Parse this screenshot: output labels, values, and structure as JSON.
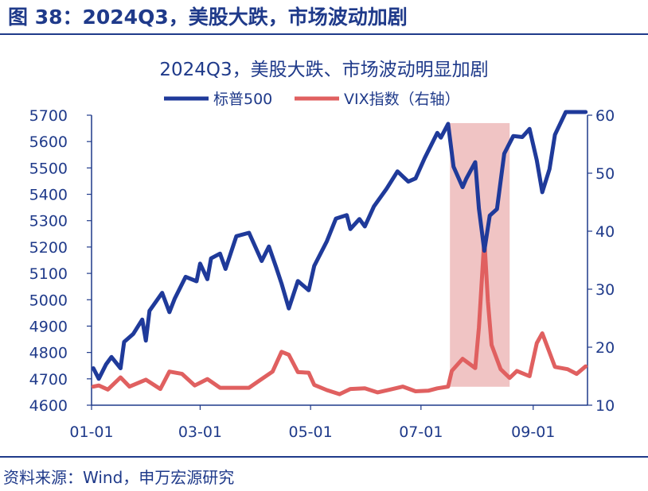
{
  "figure": {
    "title": "图 38：2024Q3，美股大跌，市场波动加剧",
    "source": "资料来源：Wind，申万宏源研究"
  },
  "colors": {
    "spx": "#1f3a9a",
    "vix": "#e06060",
    "highlight": "#f0c4c4",
    "axis": "#1f3a8a"
  },
  "chart_data": {
    "type": "line",
    "title": "2024Q3，美股大跌、市场波动明显加剧",
    "legend_position": "top",
    "grid": false,
    "x_range": [
      "2024-01-01",
      "2024-10-01"
    ],
    "x_ticks": [
      "01-01",
      "03-01",
      "05-01",
      "07-01",
      "09-01"
    ],
    "y_left": {
      "range": [
        4600,
        5700
      ],
      "ticks": [
        4600,
        4700,
        4800,
        4900,
        5000,
        5100,
        5200,
        5300,
        5400,
        5500,
        5600,
        5700
      ]
    },
    "y_right": {
      "range": [
        10,
        60
      ],
      "ticks": [
        10,
        20,
        30,
        40,
        50,
        60
      ]
    },
    "highlight_range": {
      "x": [
        "2024-07-17",
        "2024-08-19"
      ],
      "y_left": [
        4670,
        5670
      ]
    },
    "series": [
      {
        "name": "标普500",
        "axis": "left",
        "points": [
          [
            "2024-01-02",
            4740
          ],
          [
            "2024-01-05",
            4700
          ],
          [
            "2024-01-09",
            4755
          ],
          [
            "2024-01-12",
            4783
          ],
          [
            "2024-01-17",
            4740
          ],
          [
            "2024-01-19",
            4840
          ],
          [
            "2024-01-24",
            4870
          ],
          [
            "2024-01-29",
            4925
          ],
          [
            "2024-01-31",
            4845
          ],
          [
            "2024-02-02",
            4958
          ],
          [
            "2024-02-09",
            5026
          ],
          [
            "2024-02-13",
            4953
          ],
          [
            "2024-02-16",
            5005
          ],
          [
            "2024-02-22",
            5087
          ],
          [
            "2024-02-28",
            5070
          ],
          [
            "2024-03-01",
            5137
          ],
          [
            "2024-03-05",
            5078
          ],
          [
            "2024-03-07",
            5157
          ],
          [
            "2024-03-12",
            5175
          ],
          [
            "2024-03-15",
            5117
          ],
          [
            "2024-03-21",
            5241
          ],
          [
            "2024-03-28",
            5254
          ],
          [
            "2024-04-04",
            5147
          ],
          [
            "2024-04-08",
            5202
          ],
          [
            "2024-04-12",
            5123
          ],
          [
            "2024-04-15",
            5061
          ],
          [
            "2024-04-19",
            4967
          ],
          [
            "2024-04-24",
            5071
          ],
          [
            "2024-04-30",
            5036
          ],
          [
            "2024-05-03",
            5128
          ],
          [
            "2024-05-10",
            5222
          ],
          [
            "2024-05-15",
            5308
          ],
          [
            "2024-05-21",
            5321
          ],
          [
            "2024-05-23",
            5268
          ],
          [
            "2024-05-28",
            5306
          ],
          [
            "2024-05-31",
            5278
          ],
          [
            "2024-06-05",
            5354
          ],
          [
            "2024-06-12",
            5421
          ],
          [
            "2024-06-18",
            5487
          ],
          [
            "2024-06-24",
            5448
          ],
          [
            "2024-06-28",
            5460
          ],
          [
            "2024-07-03",
            5537
          ],
          [
            "2024-07-10",
            5633
          ],
          [
            "2024-07-12",
            5615
          ],
          [
            "2024-07-16",
            5667
          ],
          [
            "2024-07-19",
            5505
          ],
          [
            "2024-07-24",
            5427
          ],
          [
            "2024-07-26",
            5459
          ],
          [
            "2024-07-31",
            5522
          ],
          [
            "2024-08-02",
            5346
          ],
          [
            "2024-08-05",
            5186
          ],
          [
            "2024-08-08",
            5319
          ],
          [
            "2024-08-12",
            5344
          ],
          [
            "2024-08-16",
            5554
          ],
          [
            "2024-08-21",
            5621
          ],
          [
            "2024-08-26",
            5617
          ],
          [
            "2024-08-30",
            5648
          ],
          [
            "2024-09-03",
            5529
          ],
          [
            "2024-09-06",
            5408
          ],
          [
            "2024-09-10",
            5496
          ],
          [
            "2024-09-13",
            5626
          ],
          [
            "2024-09-19",
            5713
          ],
          [
            "2024-09-24",
            5732
          ],
          [
            "2024-09-30",
            5762
          ]
        ]
      },
      {
        "name": "VIX指数（右轴）",
        "axis": "right",
        "points": [
          [
            "2024-01-02",
            13.2
          ],
          [
            "2024-01-05",
            13.4
          ],
          [
            "2024-01-10",
            12.7
          ],
          [
            "2024-01-17",
            14.8
          ],
          [
            "2024-01-22",
            13.2
          ],
          [
            "2024-01-31",
            14.4
          ],
          [
            "2024-02-08",
            12.8
          ],
          [
            "2024-02-13",
            15.8
          ],
          [
            "2024-02-20",
            15.4
          ],
          [
            "2024-02-27",
            13.4
          ],
          [
            "2024-03-05",
            14.5
          ],
          [
            "2024-03-12",
            13.0
          ],
          [
            "2024-03-20",
            13.0
          ],
          [
            "2024-03-28",
            13.0
          ],
          [
            "2024-04-03",
            14.3
          ],
          [
            "2024-04-10",
            15.8
          ],
          [
            "2024-04-15",
            19.2
          ],
          [
            "2024-04-19",
            18.7
          ],
          [
            "2024-04-24",
            15.7
          ],
          [
            "2024-04-30",
            15.6
          ],
          [
            "2024-05-03",
            13.5
          ],
          [
            "2024-05-10",
            12.6
          ],
          [
            "2024-05-17",
            11.9
          ],
          [
            "2024-05-23",
            12.8
          ],
          [
            "2024-05-31",
            12.9
          ],
          [
            "2024-06-07",
            12.2
          ],
          [
            "2024-06-14",
            12.7
          ],
          [
            "2024-06-21",
            13.2
          ],
          [
            "2024-06-28",
            12.4
          ],
          [
            "2024-07-05",
            12.5
          ],
          [
            "2024-07-10",
            12.9
          ],
          [
            "2024-07-16",
            13.2
          ],
          [
            "2024-07-18",
            15.9
          ],
          [
            "2024-07-24",
            18.0
          ],
          [
            "2024-07-31",
            16.4
          ],
          [
            "2024-08-02",
            23.4
          ],
          [
            "2024-08-05",
            38.6
          ],
          [
            "2024-08-07",
            27.9
          ],
          [
            "2024-08-09",
            20.4
          ],
          [
            "2024-08-14",
            16.2
          ],
          [
            "2024-08-19",
            14.7
          ],
          [
            "2024-08-23",
            15.9
          ],
          [
            "2024-08-30",
            15.0
          ],
          [
            "2024-09-03",
            20.7
          ],
          [
            "2024-09-06",
            22.4
          ],
          [
            "2024-09-10",
            19.1
          ],
          [
            "2024-09-13",
            16.6
          ],
          [
            "2024-09-20",
            16.2
          ],
          [
            "2024-09-25",
            15.4
          ],
          [
            "2024-09-30",
            16.7
          ]
        ]
      }
    ]
  }
}
